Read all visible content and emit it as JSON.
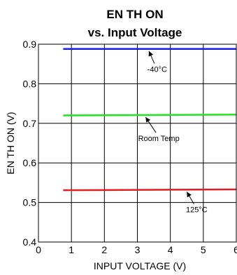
{
  "chart_data": {
    "type": "line",
    "title_line1": "EN TH ON",
    "title_line2": "vs. Input Voltage",
    "xlabel": "INPUT VOLTAGE (V)",
    "ylabel": "EN TH ON (V)",
    "xlim": [
      0,
      6
    ],
    "ylim": [
      0.4,
      0.9
    ],
    "x_ticks": [
      0,
      1,
      2,
      3,
      4,
      5,
      6
    ],
    "y_ticks": [
      0.4,
      0.5,
      0.6,
      0.7,
      0.8,
      0.9
    ],
    "y_tick_labels": [
      "0.4",
      "0.5",
      "0.6",
      "0.7",
      "0.8",
      "0.9"
    ],
    "grid": true,
    "series": [
      {
        "name": "-40°C",
        "color": "#1a1aff",
        "x": [
          0.75,
          6.0
        ],
        "y": [
          0.888,
          0.888
        ]
      },
      {
        "name": "Room Temp",
        "color": "#22e022",
        "x": [
          0.75,
          6.0
        ],
        "y": [
          0.72,
          0.722
        ]
      },
      {
        "name": "125°C",
        "color": "#e02020",
        "x": [
          0.75,
          6.0
        ],
        "y": [
          0.531,
          0.533
        ]
      }
    ],
    "annotations": [
      {
        "text": "-40°C",
        "arrow_to": [
          3.35,
          0.888
        ],
        "text_at": [
          3.6,
          0.83
        ]
      },
      {
        "text": "Room Temp",
        "arrow_to": [
          3.25,
          0.721
        ],
        "text_at": [
          3.65,
          0.655
        ]
      },
      {
        "text": "125°C",
        "arrow_to": [
          4.5,
          0.532
        ],
        "text_at": [
          4.8,
          0.475
        ]
      }
    ]
  }
}
